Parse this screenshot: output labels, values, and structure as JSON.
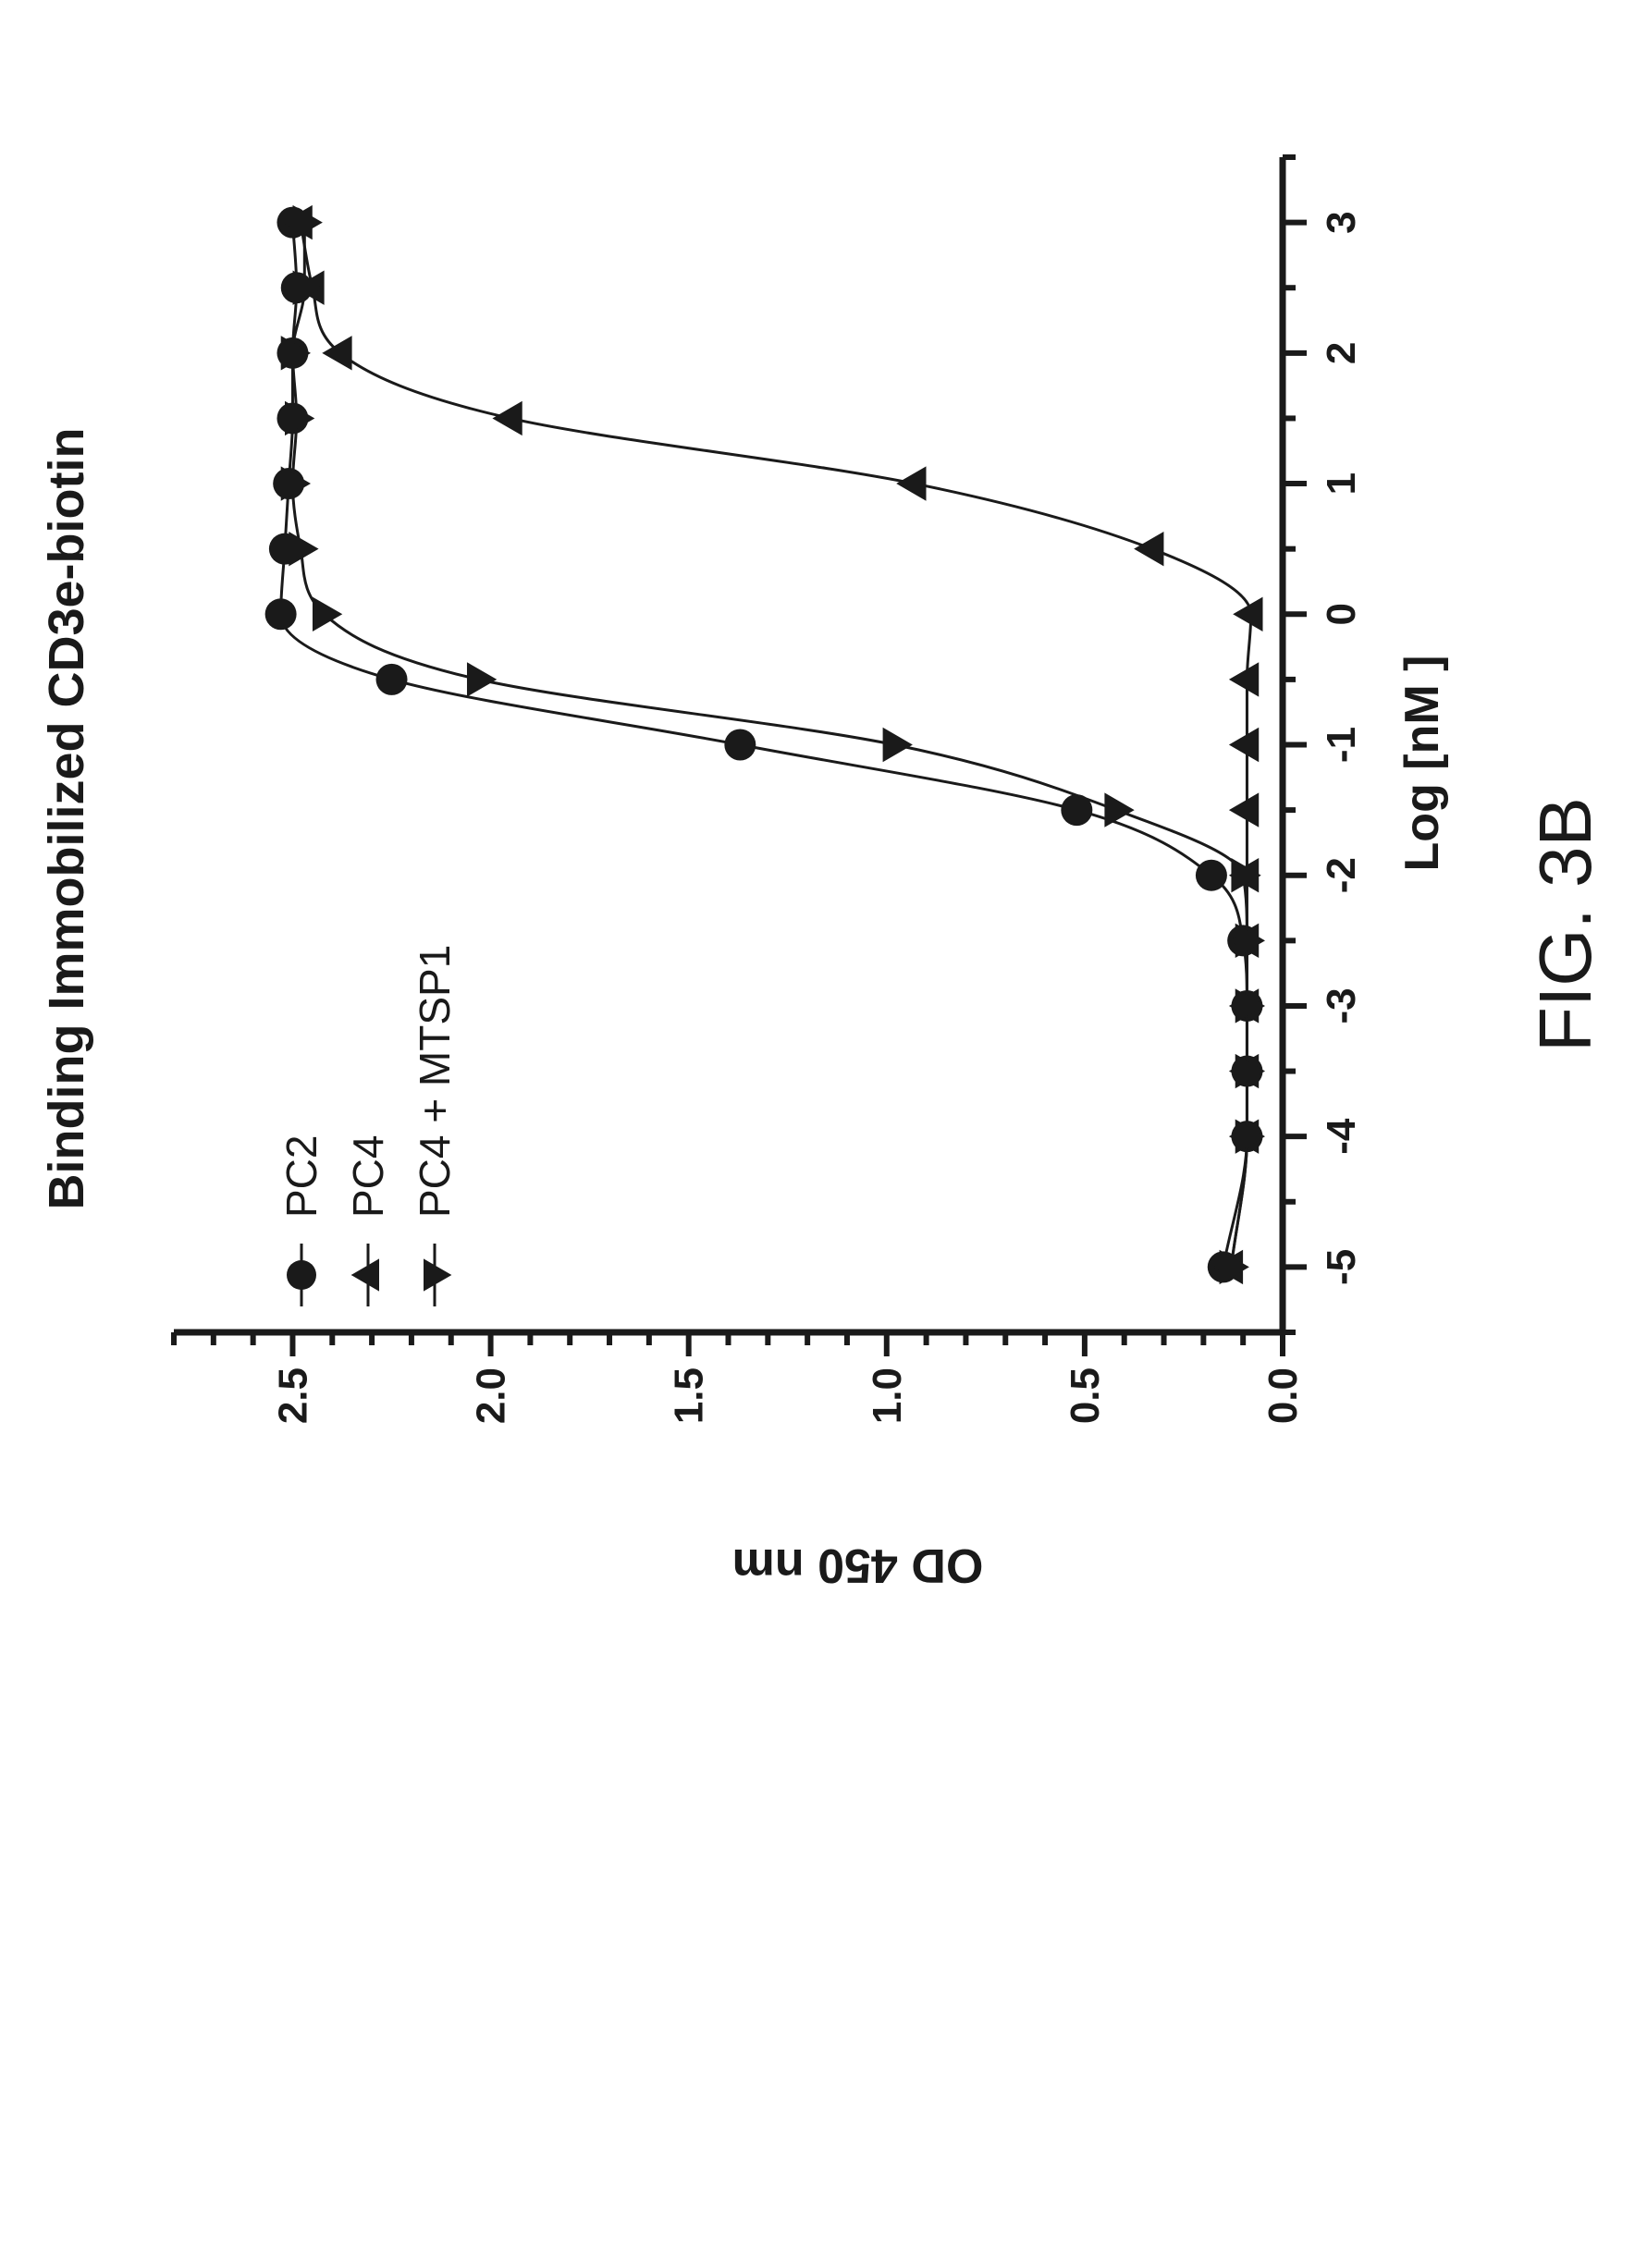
{
  "chart_data": {
    "type": "line",
    "title": "Binding Immobilized CD3e-biotin",
    "xlabel": "Log [nM ]",
    "ylabel": "OD 450 nm",
    "xlim": [
      -5.5,
      3.5
    ],
    "ylim": [
      0.0,
      2.8
    ],
    "x_ticks": [
      "-5",
      "-4",
      "-3",
      "-2",
      "-1",
      "0",
      "1",
      "2",
      "3"
    ],
    "y_ticks": [
      "0.0",
      "0.5",
      "1.0",
      "1.5",
      "2.0",
      "2.5"
    ],
    "orientation": "figure rotated 90° counter-clockwise on the page",
    "grid": false,
    "legend_position": "top-left",
    "series": [
      {
        "name": "PC2",
        "marker": "circle",
        "x": [
          -5,
          -4,
          -3.5,
          -3,
          -2.5,
          -2,
          -1.5,
          -1,
          -0.5,
          0,
          0.5,
          1,
          1.5,
          2,
          2.5,
          3
        ],
        "y": [
          0.15,
          0.09,
          0.09,
          0.09,
          0.1,
          0.18,
          0.52,
          1.37,
          2.25,
          2.53,
          2.52,
          2.51,
          2.5,
          2.5,
          2.49,
          2.5
        ]
      },
      {
        "name": "PC4",
        "marker": "triangle-up",
        "x": [
          -5,
          -4,
          -3.5,
          -3,
          -2.5,
          -2,
          -1.5,
          -1,
          -0.5,
          0,
          0.5,
          1,
          1.5,
          2,
          2.5,
          3
        ],
        "y": [
          0.13,
          0.09,
          0.09,
          0.09,
          0.09,
          0.09,
          0.09,
          0.09,
          0.09,
          0.08,
          0.33,
          0.93,
          1.95,
          2.38,
          2.45,
          2.48
        ]
      },
      {
        "name": "PC4 + MTSP1",
        "marker": "triangle-down",
        "x": [
          -5,
          -4,
          -3.5,
          -3,
          -2.5,
          -2,
          -1.5,
          -1,
          -0.5,
          0,
          0.5,
          1,
          1.5,
          2,
          2.5,
          3
        ],
        "y": [
          0.13,
          0.09,
          0.09,
          0.09,
          0.09,
          0.1,
          0.42,
          0.98,
          2.03,
          2.42,
          2.48,
          2.5,
          2.49,
          2.5,
          2.47,
          2.47
        ]
      }
    ]
  },
  "caption": "FIG. 3B",
  "colors": {
    "ink": "#1a1a1a",
    "background": "#ffffff"
  }
}
